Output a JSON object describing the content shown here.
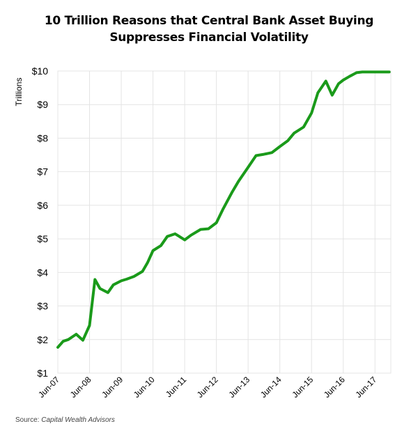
{
  "chart_data": {
    "type": "line",
    "title_line1": "10 Trillion Reasons that Central Bank Asset Buying",
    "title_line2": "Suppresses Financial Volatility",
    "ylabel": "Trillions",
    "ylim": [
      1,
      10
    ],
    "yticks": [
      1,
      2,
      3,
      4,
      5,
      6,
      7,
      8,
      9,
      10
    ],
    "ytick_labels": [
      "$1",
      "$2",
      "$3",
      "$4",
      "$5",
      "$6",
      "$7",
      "$8",
      "$9",
      "$10"
    ],
    "xlim": [
      2007.5,
      2018.0
    ],
    "xticks": [
      2007.5,
      2008.5,
      2009.5,
      2010.5,
      2011.5,
      2012.5,
      2013.5,
      2014.5,
      2015.5,
      2016.5,
      2017.5
    ],
    "xtick_labels": [
      "Jun-07",
      "Jun-08",
      "Jun-09",
      "Jun-10",
      "Jun-11",
      "Jun-12",
      "Jun-13",
      "Jun-14",
      "Jun-15",
      "Jun-16",
      "Jun-17"
    ],
    "grid": true,
    "line_color": "#1a9a1a",
    "series": [
      {
        "x": [
          2007.5,
          2007.67,
          2007.83,
          2008.08,
          2008.29,
          2008.5,
          2008.67,
          2008.83,
          2009.08,
          2009.25,
          2009.5,
          2009.67,
          2009.9,
          2010.17,
          2010.33,
          2010.5,
          2010.75,
          2010.95,
          2011.2,
          2011.5,
          2011.7,
          2012.0,
          2012.25,
          2012.5,
          2012.7,
          2013.0,
          2013.2,
          2013.5,
          2013.75,
          2014.0,
          2014.25,
          2014.5,
          2014.75,
          2014.95,
          2015.25,
          2015.5,
          2015.7,
          2015.95,
          2016.15,
          2016.35,
          2016.5,
          2016.7,
          2016.92,
          2017.1,
          2017.4,
          2017.7,
          2017.95
        ],
        "values": [
          1.77,
          1.95,
          2.0,
          2.16,
          1.98,
          2.42,
          3.79,
          3.52,
          3.4,
          3.63,
          3.75,
          3.8,
          3.88,
          4.03,
          4.29,
          4.65,
          4.8,
          5.07,
          5.15,
          4.97,
          5.11,
          5.28,
          5.3,
          5.48,
          5.87,
          6.4,
          6.72,
          7.13,
          7.48,
          7.52,
          7.57,
          7.75,
          7.92,
          8.15,
          8.33,
          8.75,
          9.35,
          9.7,
          9.28,
          9.62,
          9.73,
          9.84,
          9.95,
          9.97,
          9.97,
          9.97,
          9.97
        ]
      }
    ]
  },
  "source": {
    "prefix": "Source:",
    "name": "Capital Wealth Advisors"
  }
}
